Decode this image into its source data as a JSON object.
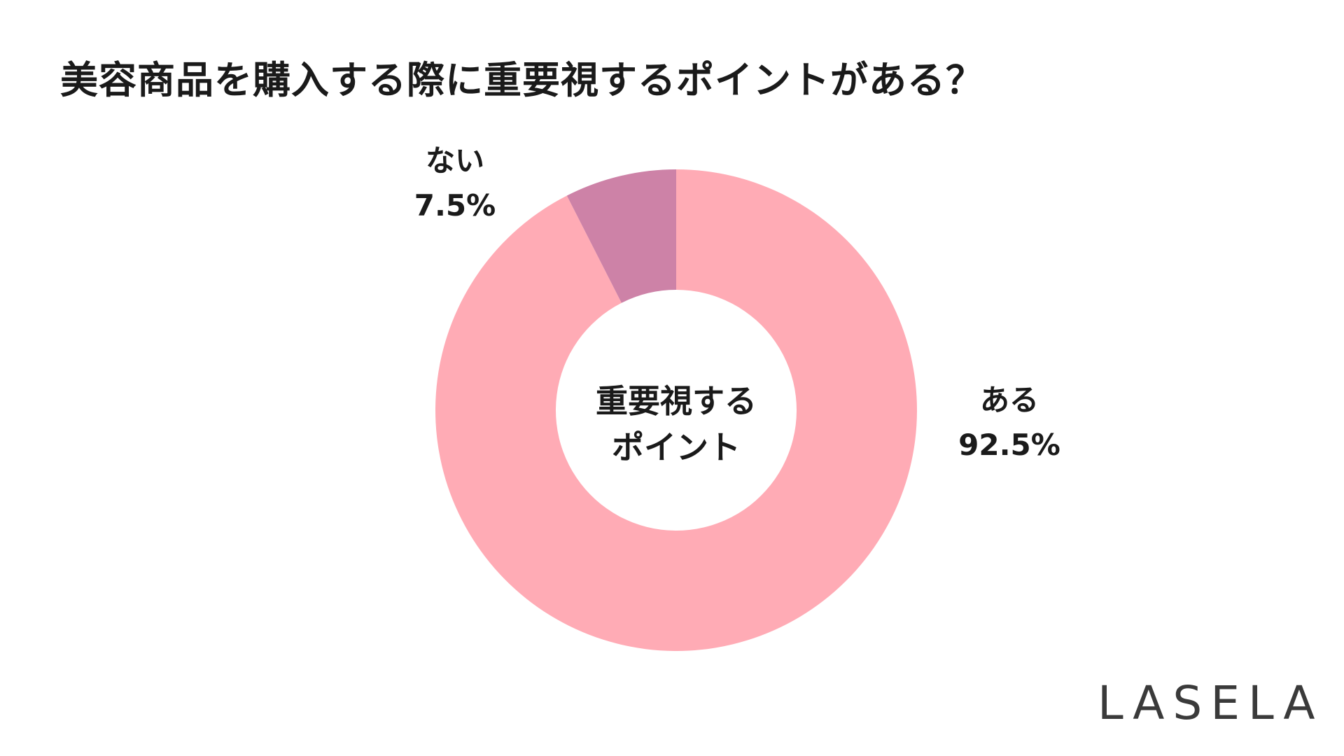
{
  "title": "美容商品を購入する際に重要視するポイントがある？",
  "chart_data": {
    "type": "pie",
    "title": "美容商品を購入する際に重要視するポイントがある？",
    "center_label": [
      "重要視する",
      "ポイント"
    ],
    "slices": [
      {
        "label": "ある",
        "value": 92.5,
        "value_label": "92.5%",
        "color": "#ffabb5"
      },
      {
        "label": "ない",
        "value": 7.5,
        "value_label": "7.5%",
        "color": "#cd82a7"
      }
    ],
    "donut": true,
    "start_angle": "12 o'clock",
    "direction": "clockwise"
  },
  "brand": "LASELA"
}
